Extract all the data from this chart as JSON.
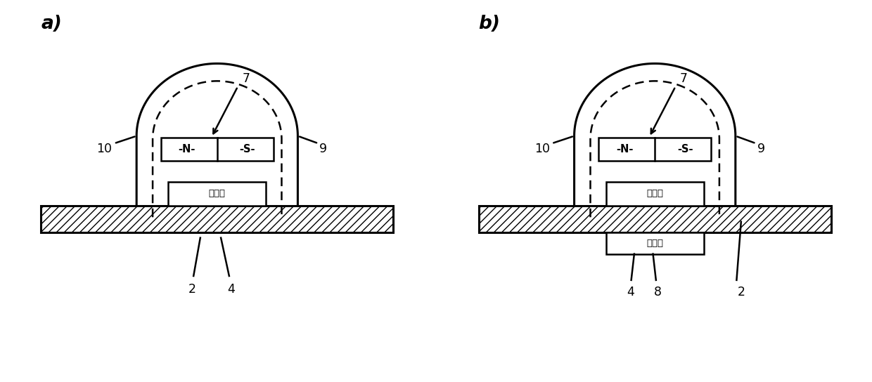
{
  "bg_color": "#ffffff",
  "line_color": "#000000",
  "label_a": "a)",
  "label_b": "b)",
  "sensor_text": "传感器",
  "target_text": "目标体",
  "N_text": "-N-",
  "S_text": "-S-",
  "ref_7": "7",
  "ref_9": "9",
  "ref_10": "10",
  "ref_2a": "2",
  "ref_4a": "4",
  "ref_2b": "2",
  "ref_4b": "4",
  "ref_8b": "8"
}
